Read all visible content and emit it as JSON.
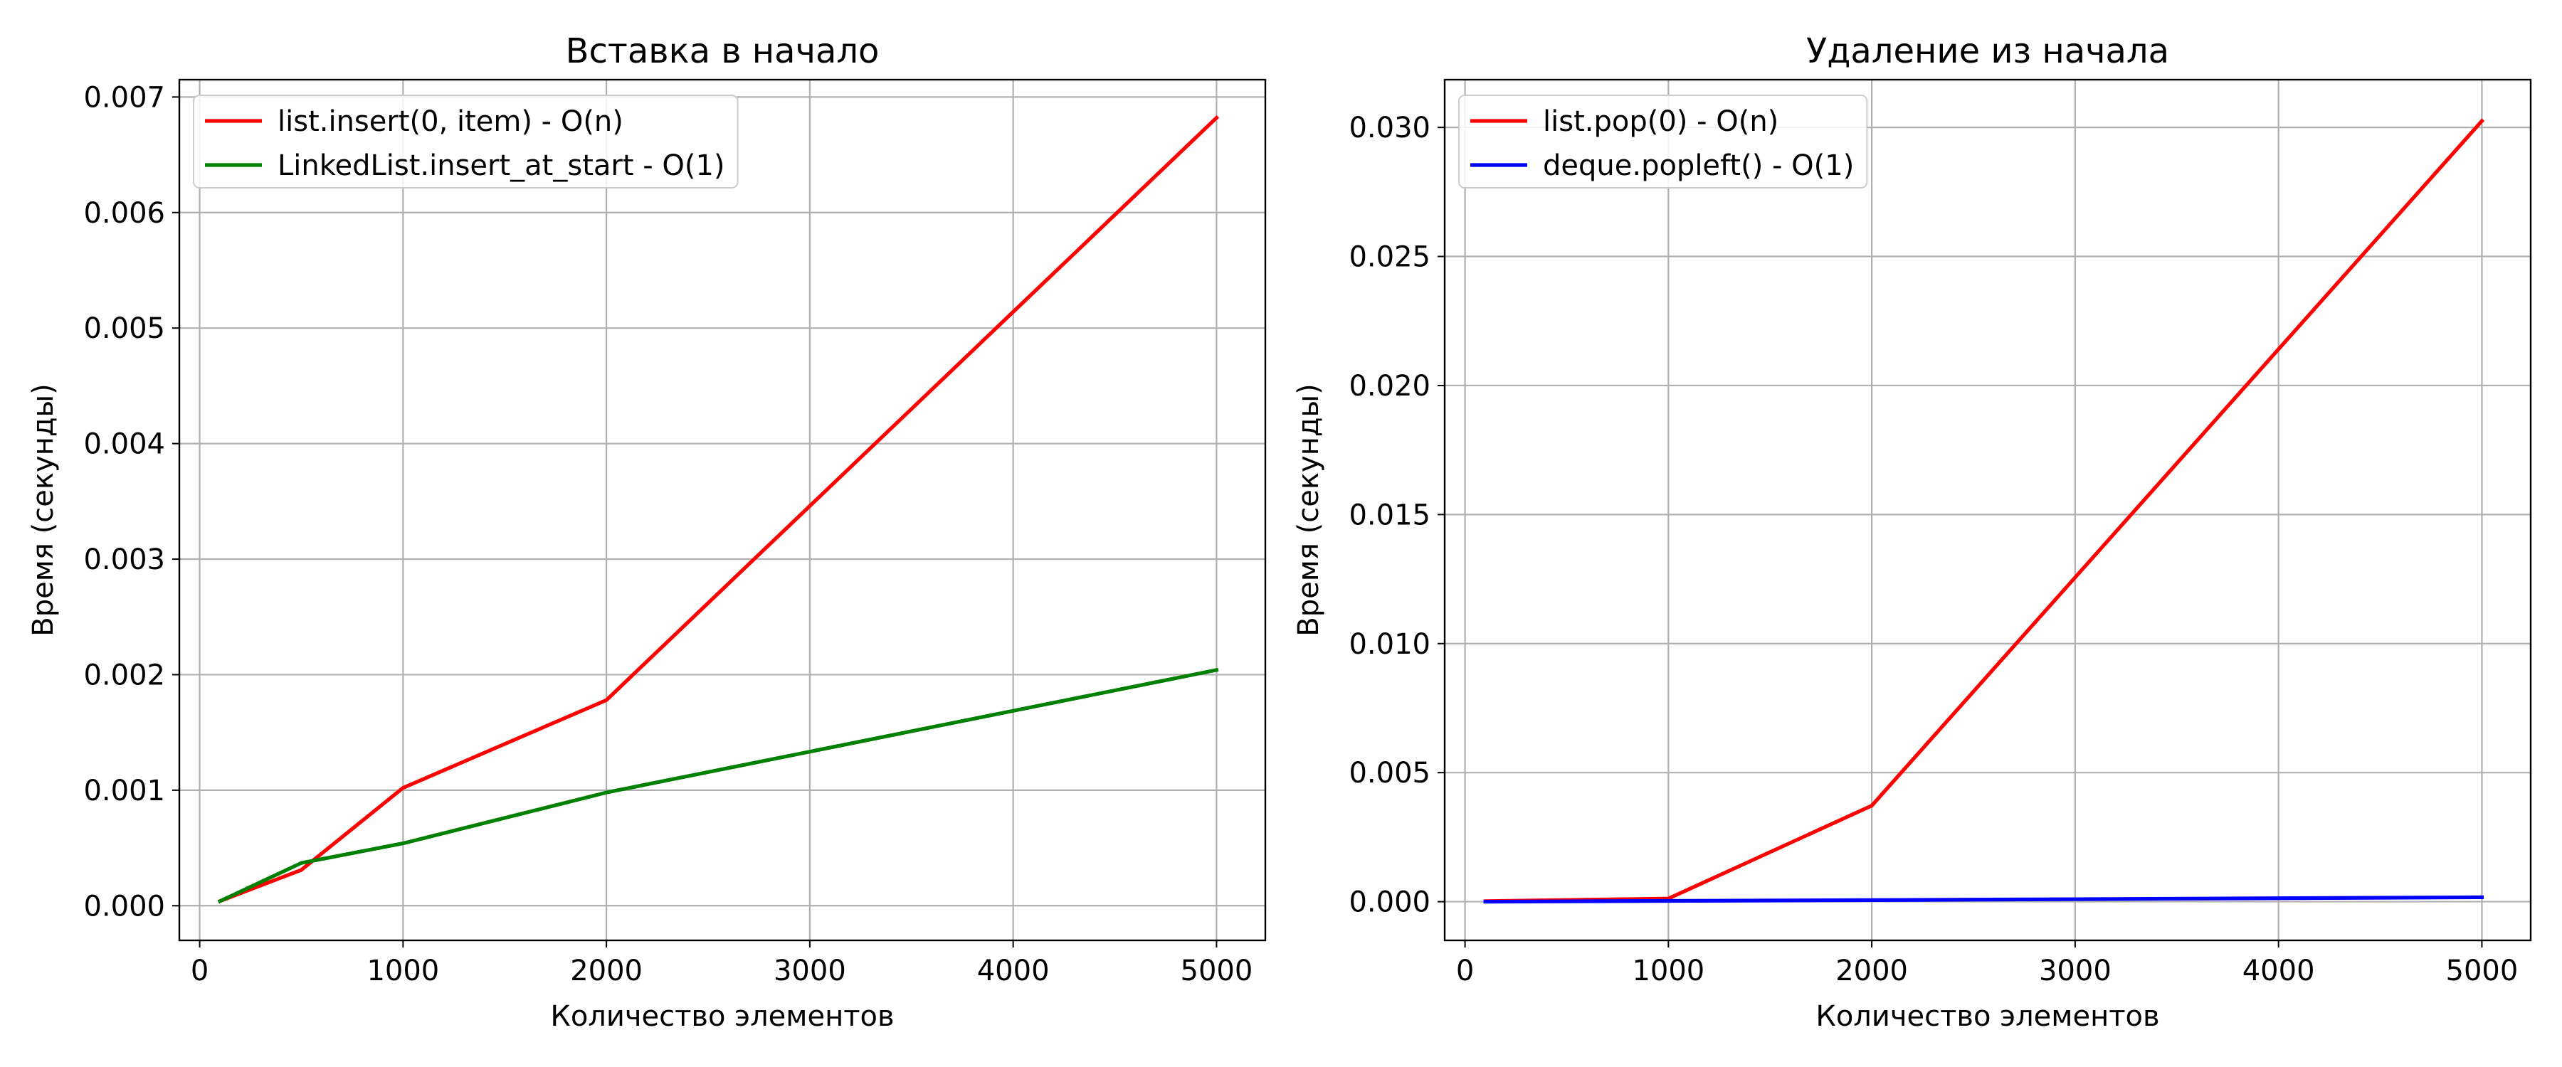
{
  "chart_data": [
    {
      "type": "line",
      "title": "Вставка в начало",
      "xlabel": "Количество элементов",
      "ylabel": "Время (секунды)",
      "xlim": [
        -100,
        5240
      ],
      "ylim": [
        -0.0003,
        0.00715
      ],
      "xticks": [
        0,
        1000,
        2000,
        3000,
        4000,
        5000
      ],
      "xtick_labels": [
        "0",
        "1000",
        "2000",
        "3000",
        "4000",
        "5000"
      ],
      "yticks": [
        0,
        0.001,
        0.002,
        0.003,
        0.004,
        0.005,
        0.006,
        0.007
      ],
      "ytick_labels": [
        "0.000",
        "0.001",
        "0.002",
        "0.003",
        "0.004",
        "0.005",
        "0.006",
        "0.007"
      ],
      "grid": true,
      "legend": "top-left",
      "x": [
        100,
        500,
        1000,
        2000,
        5000
      ],
      "series": [
        {
          "name": "list.insert(0, item) - O(n)",
          "color": "#ff0000",
          "values": [
            4e-05,
            0.00031,
            0.00102,
            0.00178,
            0.00682
          ]
        },
        {
          "name": "LinkedList.insert_at_start - O(1)",
          "color": "#008000",
          "values": [
            4e-05,
            0.00037,
            0.00054,
            0.00098,
            0.00204
          ]
        }
      ]
    },
    {
      "type": "line",
      "title": "Удаление из начала",
      "xlabel": "Количество элементов",
      "ylabel": "Время (секунды)",
      "xlim": [
        -100,
        5240
      ],
      "ylim": [
        -0.0015,
        0.03185
      ],
      "xticks": [
        0,
        1000,
        2000,
        3000,
        4000,
        5000
      ],
      "xtick_labels": [
        "0",
        "1000",
        "2000",
        "3000",
        "4000",
        "5000"
      ],
      "yticks": [
        0,
        0.005,
        0.01,
        0.015,
        0.02,
        0.025,
        0.03
      ],
      "ytick_labels": [
        "0.000",
        "0.005",
        "0.010",
        "0.015",
        "0.020",
        "0.025",
        "0.030"
      ],
      "grid": true,
      "legend": "top-left",
      "x": [
        100,
        1000,
        2000,
        5000
      ],
      "series": [
        {
          "name": "list.pop(0) - O(n)",
          "color": "#ff0000",
          "values": [
            2e-05,
            0.00012,
            0.00372,
            0.03025
          ]
        },
        {
          "name": "deque.popleft() - O(1)",
          "color": "#0000ff",
          "values": [
            0.0,
            3e-05,
            6e-05,
            0.00017
          ]
        }
      ]
    }
  ]
}
